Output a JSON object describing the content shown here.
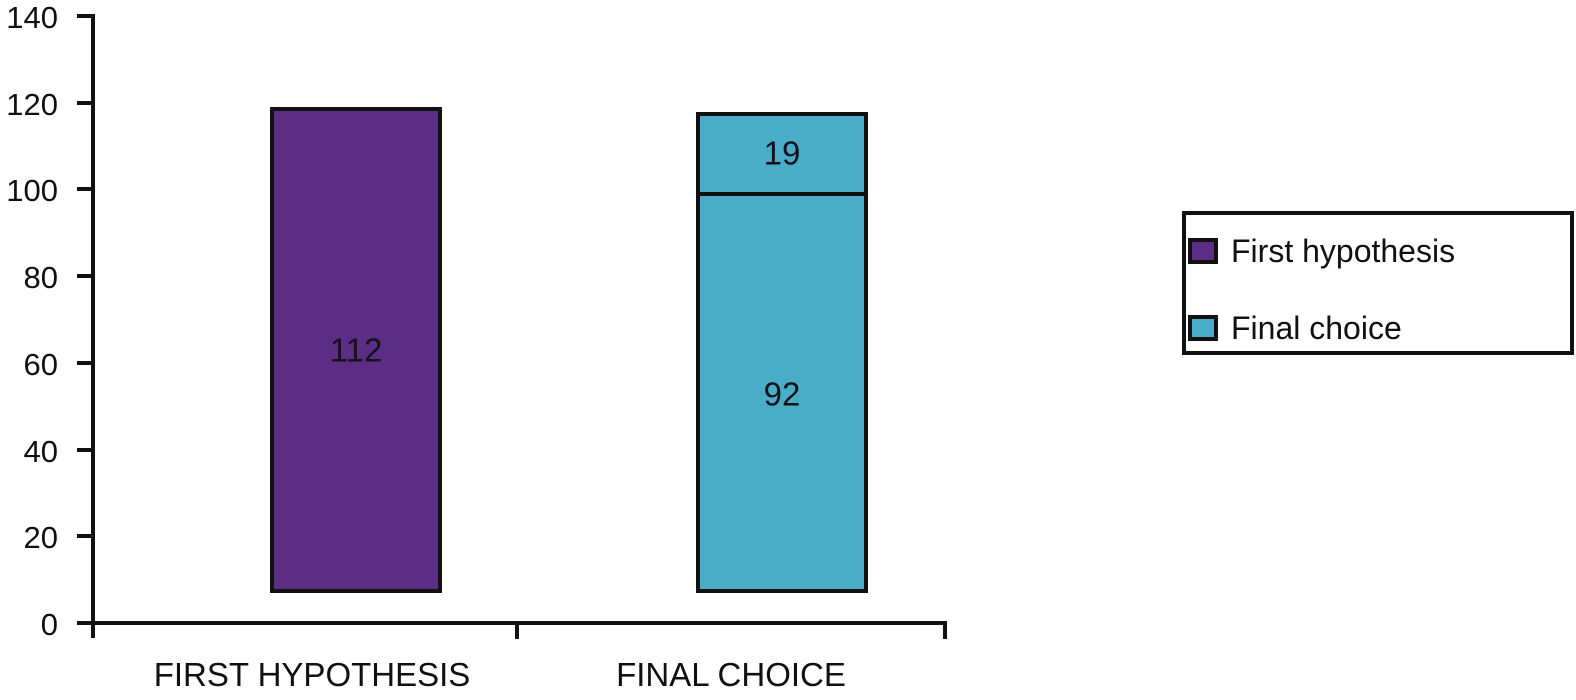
{
  "figure": {
    "background": "#ffffff",
    "text_color": "#101014",
    "axis_color": "#111111"
  },
  "y_axis": {
    "tick_labels": [
      "0",
      "20",
      "40",
      "60",
      "80",
      "100",
      "120",
      "140"
    ]
  },
  "x_axis": {
    "categories": [
      "FIRST HYPOTHESIS",
      "FINAL CHOICE"
    ]
  },
  "legend": {
    "items": [
      {
        "label": "First hypothesis",
        "color": "#5b2d85"
      },
      {
        "label": "Final choice",
        "color": "#4aadc7"
      }
    ]
  },
  "chart_data": {
    "type": "bar",
    "stacked": true,
    "title": "",
    "xlabel": "",
    "ylabel": "",
    "ylim": [
      0,
      140
    ],
    "y_ticks": [
      0,
      20,
      40,
      60,
      80,
      100,
      120,
      140
    ],
    "grid": false,
    "legend_position": "right",
    "categories": [
      "FIRST HYPOTHESIS",
      "FINAL CHOICE"
    ],
    "series": [
      {
        "name": "First hypothesis",
        "color": "#5b2d85",
        "values": [
          112,
          null
        ]
      },
      {
        "name": "Final choice",
        "color": "#4aadc7",
        "values": [
          null,
          111
        ]
      }
    ],
    "bars": [
      {
        "category": "FIRST HYPOTHESIS",
        "series": "First hypothesis",
        "color": "#5b2d85",
        "segments": [
          {
            "value": 112,
            "label": "112"
          }
        ]
      },
      {
        "category": "FINAL CHOICE",
        "series": "Final choice",
        "color": "#4aadc7",
        "segments": [
          {
            "value": 92,
            "label": "92"
          },
          {
            "value": 19,
            "label": "19"
          }
        ]
      }
    ]
  }
}
